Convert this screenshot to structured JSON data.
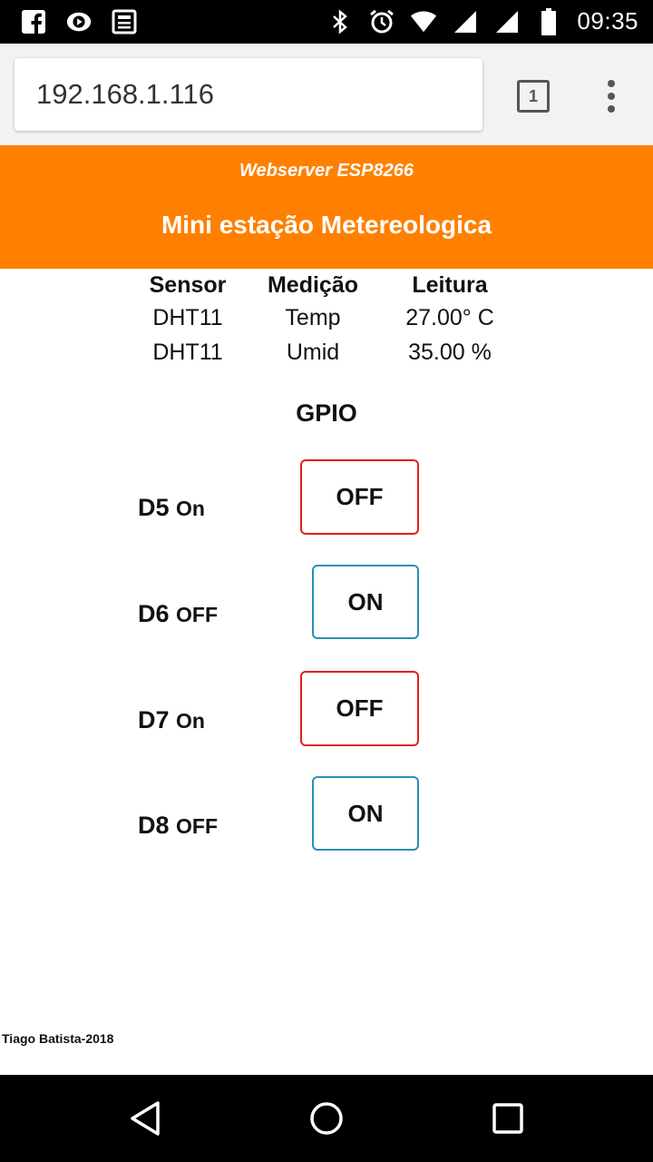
{
  "status_bar": {
    "time": "09:35",
    "left_icons": [
      "facebook-icon",
      "media-icon",
      "news-icon"
    ],
    "right_icons": [
      "bluetooth-icon",
      "alarm-icon",
      "wifi-icon",
      "signal-icon",
      "signal-icon",
      "battery-icon"
    ]
  },
  "browser": {
    "url": "192.168.1.116",
    "tab_count": "1"
  },
  "header": {
    "subtitle": "Webserver ESP8266",
    "title": "Mini estação Metereologica",
    "color": "#ff8000"
  },
  "sensor_table": {
    "headers": [
      "Sensor",
      "Medição",
      "Leitura"
    ],
    "rows": [
      [
        "DHT11",
        "Temp",
        "27.00° C"
      ],
      [
        "DHT11",
        "Umid",
        "35.00 %"
      ]
    ]
  },
  "gpio": {
    "title": "GPIO",
    "pins": [
      {
        "name": "D5",
        "state": "On",
        "button": "OFF"
      },
      {
        "name": "D6",
        "state": "OFF",
        "button": "ON"
      },
      {
        "name": "D7",
        "state": "On",
        "button": "OFF"
      },
      {
        "name": "D8",
        "state": "OFF",
        "button": "ON"
      }
    ]
  },
  "footer": "Tiago Batista-2018",
  "colors": {
    "off_border": "#e02020",
    "on_border": "#2a8fb8"
  }
}
